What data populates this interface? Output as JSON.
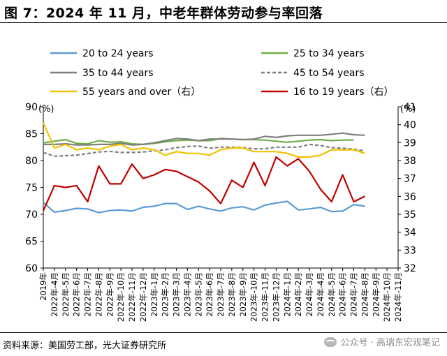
{
  "header": {
    "title": "图 7：2024 年 11 月，中老年群体劳动参与率回落"
  },
  "footer": {
    "source": "资料来源：美国劳工部，光大证券研究所",
    "watermark": "公众号 · 高瑞东宏观笔记"
  },
  "chart_data": {
    "type": "line",
    "x": [
      "2019年",
      "2022年-4月",
      "2022年-5月",
      "2022年-6月",
      "2022年-7月",
      "2022年-8月",
      "2022年-9月",
      "2022年-10月",
      "2022年-11月",
      "2022年-12月",
      "2023年-1月",
      "2023年-2月",
      "2023年-3月",
      "2023年-4月",
      "2023年-5月",
      "2023年-6月",
      "2023年-7月",
      "2023年-8月",
      "2023年-9月",
      "2023年-10月",
      "2023年-11月",
      "2023年-12月",
      "2024年-1月",
      "2024年-2月",
      "2024年-3月",
      "2024年-4月",
      "2024年-5月",
      "2024年-6月",
      "2024年-7月",
      "2024年-8月",
      "2024年-9月",
      "2024年-10月",
      "2024年-11月"
    ],
    "xticklabels": [
      "2019年",
      "2022年-4月",
      "2022年-5月",
      "2022年-6月",
      "2022年-7月",
      "2022年-8月",
      "2022年-9月",
      "2022年-10月",
      "2022年-11月",
      "2022年-12月",
      "2023年-1月",
      "2023年-2月",
      "2023年-3月",
      "2023年-4月",
      "2023年-5月",
      "2023年-6月",
      "2023年-7月",
      "2023年-8月",
      "2023年-9月",
      "2023年-10月",
      "2023年-11月",
      "2023年-12月",
      "2024年-1月",
      "2024年-2月",
      "2024年-3月",
      "2024年-4月",
      "2024年-5月",
      "2024年-6月",
      "2024年-7月",
      "2024年-8月",
      "2024年-9月",
      "2024年-10月",
      "2024年-11月"
    ],
    "y_left": {
      "unit": "(%)",
      "ylim": [
        60,
        90
      ],
      "ticks": [
        60,
        65,
        70,
        75,
        80,
        85,
        90
      ]
    },
    "y_right": {
      "unit": "(%)",
      "ylim": [
        32,
        41
      ],
      "ticks": [
        32,
        33,
        34,
        35,
        36,
        37,
        38,
        39,
        40,
        41
      ]
    },
    "grid": false,
    "legend_position": "top",
    "series": [
      {
        "name": "20 to 24 years",
        "axis": "left",
        "color": "#5b9bd5",
        "dash": "",
        "values": [
          72.2,
          70.4,
          70.7,
          71.1,
          71.0,
          70.3,
          70.7,
          70.8,
          70.6,
          71.3,
          71.5,
          72.0,
          72.0,
          70.9,
          71.5,
          71.0,
          70.6,
          71.2,
          71.4,
          70.8,
          71.7,
          72.1,
          72.4,
          70.8,
          71.0,
          71.3,
          70.5,
          70.6,
          71.8,
          71.5,
          null,
          null,
          null
        ]
      },
      {
        "name": "25 to 34 years",
        "axis": "left",
        "color": "#70ad47",
        "dash": "",
        "values": [
          83.3,
          83.6,
          83.9,
          83.2,
          83.1,
          83.7,
          83.4,
          83.5,
          83.1,
          83.0,
          83.2,
          83.5,
          83.7,
          83.8,
          83.7,
          83.7,
          84.1,
          84.0,
          83.9,
          83.9,
          83.8,
          83.6,
          83.4,
          83.6,
          83.8,
          83.9,
          83.7,
          83.8,
          83.8,
          null,
          null,
          null,
          null
        ]
      },
      {
        "name": "35 to 44 years",
        "axis": "left",
        "color": "#7f7f7f",
        "dash": "",
        "values": [
          83.0,
          83.0,
          83.1,
          82.9,
          82.9,
          83.0,
          83.0,
          83.2,
          82.9,
          83.0,
          83.3,
          83.7,
          84.1,
          84.0,
          83.7,
          84.0,
          84.0,
          84.0,
          83.9,
          84.0,
          84.5,
          84.3,
          84.6,
          84.7,
          84.7,
          84.7,
          84.9,
          85.1,
          84.8,
          84.7,
          null,
          null,
          null
        ]
      },
      {
        "name": "45 to 54 years",
        "axis": "left",
        "color": "#7f7f7f",
        "dash": "5,3",
        "values": [
          81.5,
          80.8,
          80.9,
          81.0,
          81.3,
          81.6,
          81.7,
          81.5,
          81.5,
          81.6,
          81.8,
          82.0,
          82.4,
          82.6,
          82.7,
          82.3,
          82.5,
          82.5,
          82.4,
          82.2,
          82.2,
          82.5,
          82.5,
          82.5,
          83.0,
          82.8,
          82.4,
          82.3,
          82.1,
          81.8,
          null,
          null,
          null
        ]
      },
      {
        "name": "55 years and over（右）",
        "axis": "right",
        "color": "#f2c200",
        "dash": "",
        "values": [
          40.1,
          38.7,
          38.9,
          38.6,
          38.7,
          38.6,
          38.8,
          38.9,
          38.6,
          38.7,
          38.6,
          38.3,
          38.5,
          38.4,
          38.4,
          38.3,
          38.6,
          38.7,
          38.7,
          38.5,
          38.5,
          38.5,
          38.4,
          38.2,
          38.2,
          38.3,
          38.6,
          38.6,
          38.6,
          38.4,
          null,
          null,
          null
        ]
      },
      {
        "name": "16 to 19 years（右）",
        "axis": "right",
        "color": "#c00000",
        "dash": "",
        "values": [
          35.2,
          36.6,
          36.5,
          36.6,
          35.7,
          37.7,
          36.7,
          36.7,
          37.8,
          37.0,
          37.2,
          37.5,
          37.4,
          37.1,
          36.8,
          36.3,
          35.6,
          36.9,
          36.5,
          37.9,
          36.6,
          38.2,
          37.7,
          38.1,
          37.4,
          36.4,
          35.7,
          37.2,
          35.7,
          36.0,
          null,
          null,
          null
        ]
      }
    ]
  }
}
